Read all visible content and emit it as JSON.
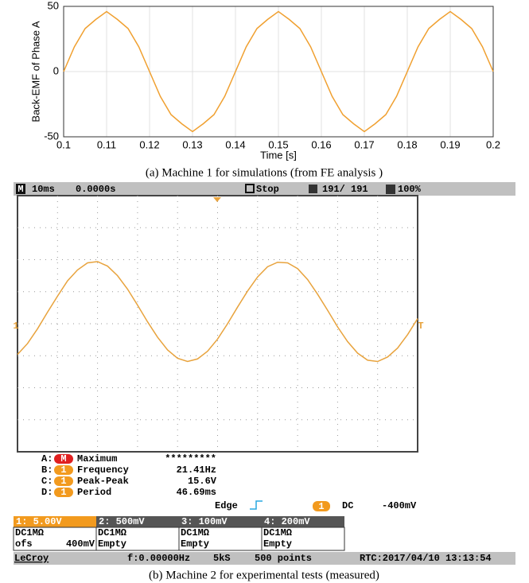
{
  "chart_data": [
    {
      "type": "line",
      "ylabel": "Back-EMF of Phase A",
      "xlabel": "Time [s]",
      "color": "#f0a030",
      "grid": true,
      "xlim": [
        0.1,
        0.2
      ],
      "ylim": [
        -50,
        50
      ],
      "xticks": [
        0.1,
        0.11,
        0.12,
        0.13,
        0.14,
        0.15,
        0.16,
        0.17,
        0.18,
        0.19,
        0.2
      ],
      "yticks": [
        -50,
        0,
        50
      ],
      "x": [
        0.1,
        0.1025,
        0.105,
        0.1075,
        0.11,
        0.1125,
        0.115,
        0.1175,
        0.12,
        0.1225,
        0.125,
        0.1275,
        0.13,
        0.1325,
        0.135,
        0.1375,
        0.14,
        0.1425,
        0.145,
        0.1475,
        0.15,
        0.1525,
        0.155,
        0.1575,
        0.16,
        0.1625,
        0.165,
        0.1675,
        0.17,
        0.1725,
        0.175,
        0.1775,
        0.18,
        0.1825,
        0.185,
        0.1875,
        0.19,
        0.1925,
        0.195,
        0.1975,
        0.2
      ],
      "values": [
        0,
        19,
        33,
        40,
        46,
        40,
        33,
        19,
        0,
        -19,
        -33,
        -40,
        -46,
        -40,
        -33,
        -19,
        0,
        19,
        33,
        40,
        46,
        40,
        33,
        19,
        0,
        -19,
        -33,
        -40,
        -46,
        -40,
        -33,
        -19,
        0,
        19,
        33,
        40,
        46,
        40,
        33,
        19,
        0
      ]
    },
    {
      "type": "line",
      "color": "#e8a33d",
      "xlim": [
        0,
        100
      ],
      "ylim": [
        -20,
        20
      ],
      "x": [
        0,
        2.5,
        5,
        7.5,
        10,
        12.5,
        15,
        17.5,
        20,
        22.5,
        25,
        27.5,
        30,
        32.5,
        35,
        37.5,
        40,
        42.5,
        45,
        47.5,
        50,
        52.5,
        55,
        57.5,
        60,
        62.5,
        65,
        67.5,
        70,
        72.5,
        75,
        77.5,
        80,
        82.5,
        85,
        87.5,
        90,
        92.5,
        95,
        97.5,
        100
      ],
      "values": [
        -4.8,
        -3.1,
        -0.8,
        1.8,
        4.3,
        6.7,
        8.4,
        9.5,
        9.7,
        9.0,
        7.5,
        5.4,
        2.9,
        0.3,
        -2.1,
        -4.1,
        -5.4,
        -5.9,
        -5.5,
        -4.3,
        -2.4,
        0.0,
        2.6,
        5.1,
        7.3,
        8.9,
        9.6,
        9.5,
        8.6,
        6.9,
        4.6,
        2.1,
        -0.5,
        -2.8,
        -4.6,
        -5.7,
        -5.9,
        -5.2,
        -3.8,
        -1.7,
        0.8
      ]
    }
  ],
  "captions": [
    "(a)    Machine 1 for simulations (from FE analysis )",
    "(b)    Machine 2 for experimental tests (measured)"
  ],
  "scope": {
    "top": {
      "mode": "M",
      "timebase": "10ms",
      "delay": "0.0000s",
      "state": "Stop",
      "count": "191/ 191",
      "zoom": "100%"
    },
    "marker": "1",
    "trig_marker": "T",
    "measures": [
      {
        "slot": "A:",
        "src": "M",
        "name": "Maximum",
        "value": "*********"
      },
      {
        "slot": "B:",
        "src": "1",
        "name": "Frequency",
        "value": "21.41Hz"
      },
      {
        "slot": "C:",
        "src": "1",
        "name": "Peak-Peak",
        "value": "15.6V"
      },
      {
        "slot": "D:",
        "src": "1",
        "name": "Period",
        "value": "46.69ms"
      }
    ],
    "trigger": {
      "kind": "Edge",
      "src": "1",
      "coupling": "DC",
      "level": "-400mV"
    },
    "channels": [
      {
        "head": "1: 5.00V",
        "coupling": "DC1MΩ",
        "ofs": "ofs",
        "ofs_value": "400mV"
      },
      {
        "head": "2: 500mV",
        "coupling": "DC1MΩ",
        "state": "Empty"
      },
      {
        "head": "3: 100mV",
        "coupling": "DC1MΩ",
        "state": "Empty"
      },
      {
        "head": "4: 200mV",
        "coupling": "DC1MΩ",
        "state": "Empty"
      }
    ],
    "bottom": {
      "brand": "LeCroy",
      "freq": "f:0.00000Hz",
      "rate": "5kS",
      "points": "500 points",
      "rtc": "RTC:2017/04/10 13:13:54"
    }
  }
}
